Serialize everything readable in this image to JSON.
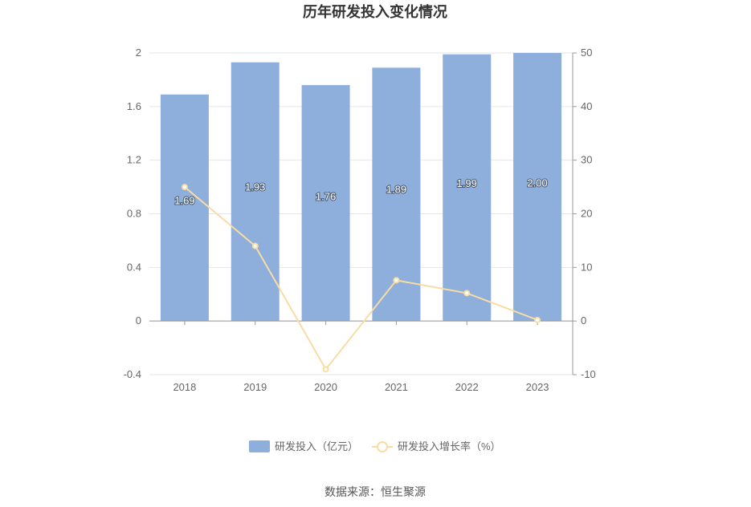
{
  "chart_data": {
    "type": "bar",
    "title": "历年研发投入变化情况",
    "categories": [
      "2018",
      "2019",
      "2020",
      "2021",
      "2022",
      "2023"
    ],
    "series": [
      {
        "name": "研发投入（亿元）",
        "type": "bar",
        "axis": "left",
        "color": "#8eaedb",
        "values": [
          1.69,
          1.93,
          1.76,
          1.89,
          1.99,
          2.0
        ],
        "labels": [
          "1.69",
          "1.93",
          "1.76",
          "1.89",
          "1.99",
          "2.00"
        ]
      },
      {
        "name": "研发投入增长率（%）",
        "type": "line",
        "axis": "right",
        "color": "#f8dca4",
        "values": [
          25.0,
          14.0,
          -9.0,
          7.6,
          5.2,
          0.2
        ]
      }
    ],
    "y_left": {
      "min": -0.4,
      "max": 2,
      "ticks": [
        "2",
        "1.6",
        "1.2",
        "0.8",
        "0.4",
        "0",
        "-0.4"
      ]
    },
    "y_right": {
      "min": -10,
      "max": 50,
      "ticks": [
        "50",
        "40",
        "30",
        "20",
        "10",
        "0",
        "-10"
      ]
    },
    "grid": true,
    "legend_position": "bottom"
  },
  "source": "数据来源：恒生聚源"
}
